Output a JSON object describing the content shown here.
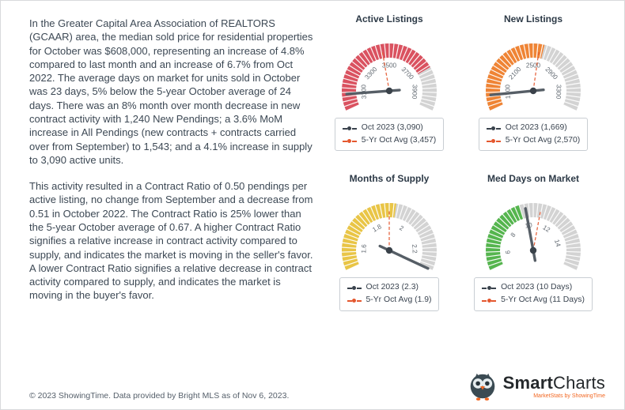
{
  "page": {
    "paragraph1": "In the Greater Capital Area Association of REALTORS (GCAAR) area, the median sold price for residential properties for October was $608,000, representing an increase of 4.8% compared to last month and an increase of 6.7% from Oct 2022. The average days on market for units sold in October was 23 days, 5% below the 5-year October average of 24 days. There was an 8% month over month decrease in new contract activity with 1,240 New Pendings; a 3.6% MoM increase in All Pendings (new contracts + contracts carried over from September) to 1,543; and a 4.1% increase in supply to 3,090 active units.",
    "paragraph2": "This activity resulted in a Contract Ratio of 0.50 pendings per active listing, no change from September and a decrease from 0.51 in October 2022. The Contract Ratio is 25% lower than the 5-year October average of 0.67. A higher Contract Ratio signifies a relative increase in contract activity compared to supply, and indicates the market is moving in the seller's favor. A lower Contract Ratio signifies a relative decrease in contract activity compared to supply, and indicates the market is moving in the buyer's favor.",
    "footer": "© 2023 ShowingTime. Data provided by Bright MLS as of Nov 6, 2023."
  },
  "branding": {
    "name_bold": "Smart",
    "name_rest": "Charts",
    "tagline": "MarketStats by ShowingTime",
    "accent": "#f26722",
    "owl_icon": "owl-logo-icon"
  },
  "colors": {
    "current": "#39424c",
    "avg": "#e4572e",
    "band_gray": "#d3d3d3",
    "needle": "#565e66",
    "pivot": "#3a424a",
    "tick_label": "#606870"
  },
  "chart_data": [
    {
      "type": "gauge",
      "title": "Active Listings",
      "min": 3000,
      "max": 4000,
      "ticks": [
        3100,
        3300,
        3500,
        3700,
        3900
      ],
      "value": 3090,
      "avg": 3457,
      "band_color": "#da5260",
      "band_end": 3760,
      "legend_current": "Oct 2023 (3,090)",
      "legend_avg": "5-Yr Oct Avg (3,457)"
    },
    {
      "type": "gauge",
      "title": "New Listings",
      "min": 1500,
      "max": 3500,
      "ticks": [
        1700,
        2100,
        2500,
        2900,
        3300
      ],
      "value": 1669,
      "avg": 2570,
      "band_color": "#ef8435",
      "band_end": 2620,
      "legend_current": "Oct 2023 (1,669)",
      "legend_avg": "5-Yr Oct Avg (2,570)"
    },
    {
      "type": "gauge",
      "title": "Months of Supply",
      "min": 1.5,
      "max": 2.3,
      "ticks": [
        1.6,
        1.8,
        2,
        2.2
      ],
      "value": 2.3,
      "avg": 1.9,
      "band_color": "#e9c546",
      "band_end": 1.93,
      "legend_current": "Oct 2023 (2.3)",
      "legend_avg": "5-Yr Oct Avg (1.9)"
    },
    {
      "type": "gauge",
      "title": "Med Days on Market",
      "min": 5,
      "max": 16,
      "ticks": [
        6,
        8,
        10,
        12,
        14
      ],
      "value": 10,
      "avg": 11,
      "band_color": "#55b54e",
      "band_end": 9.7,
      "legend_current": "Oct 2023 (10 Days)",
      "legend_avg": "5-Yr Oct Avg (11 Days)"
    }
  ]
}
